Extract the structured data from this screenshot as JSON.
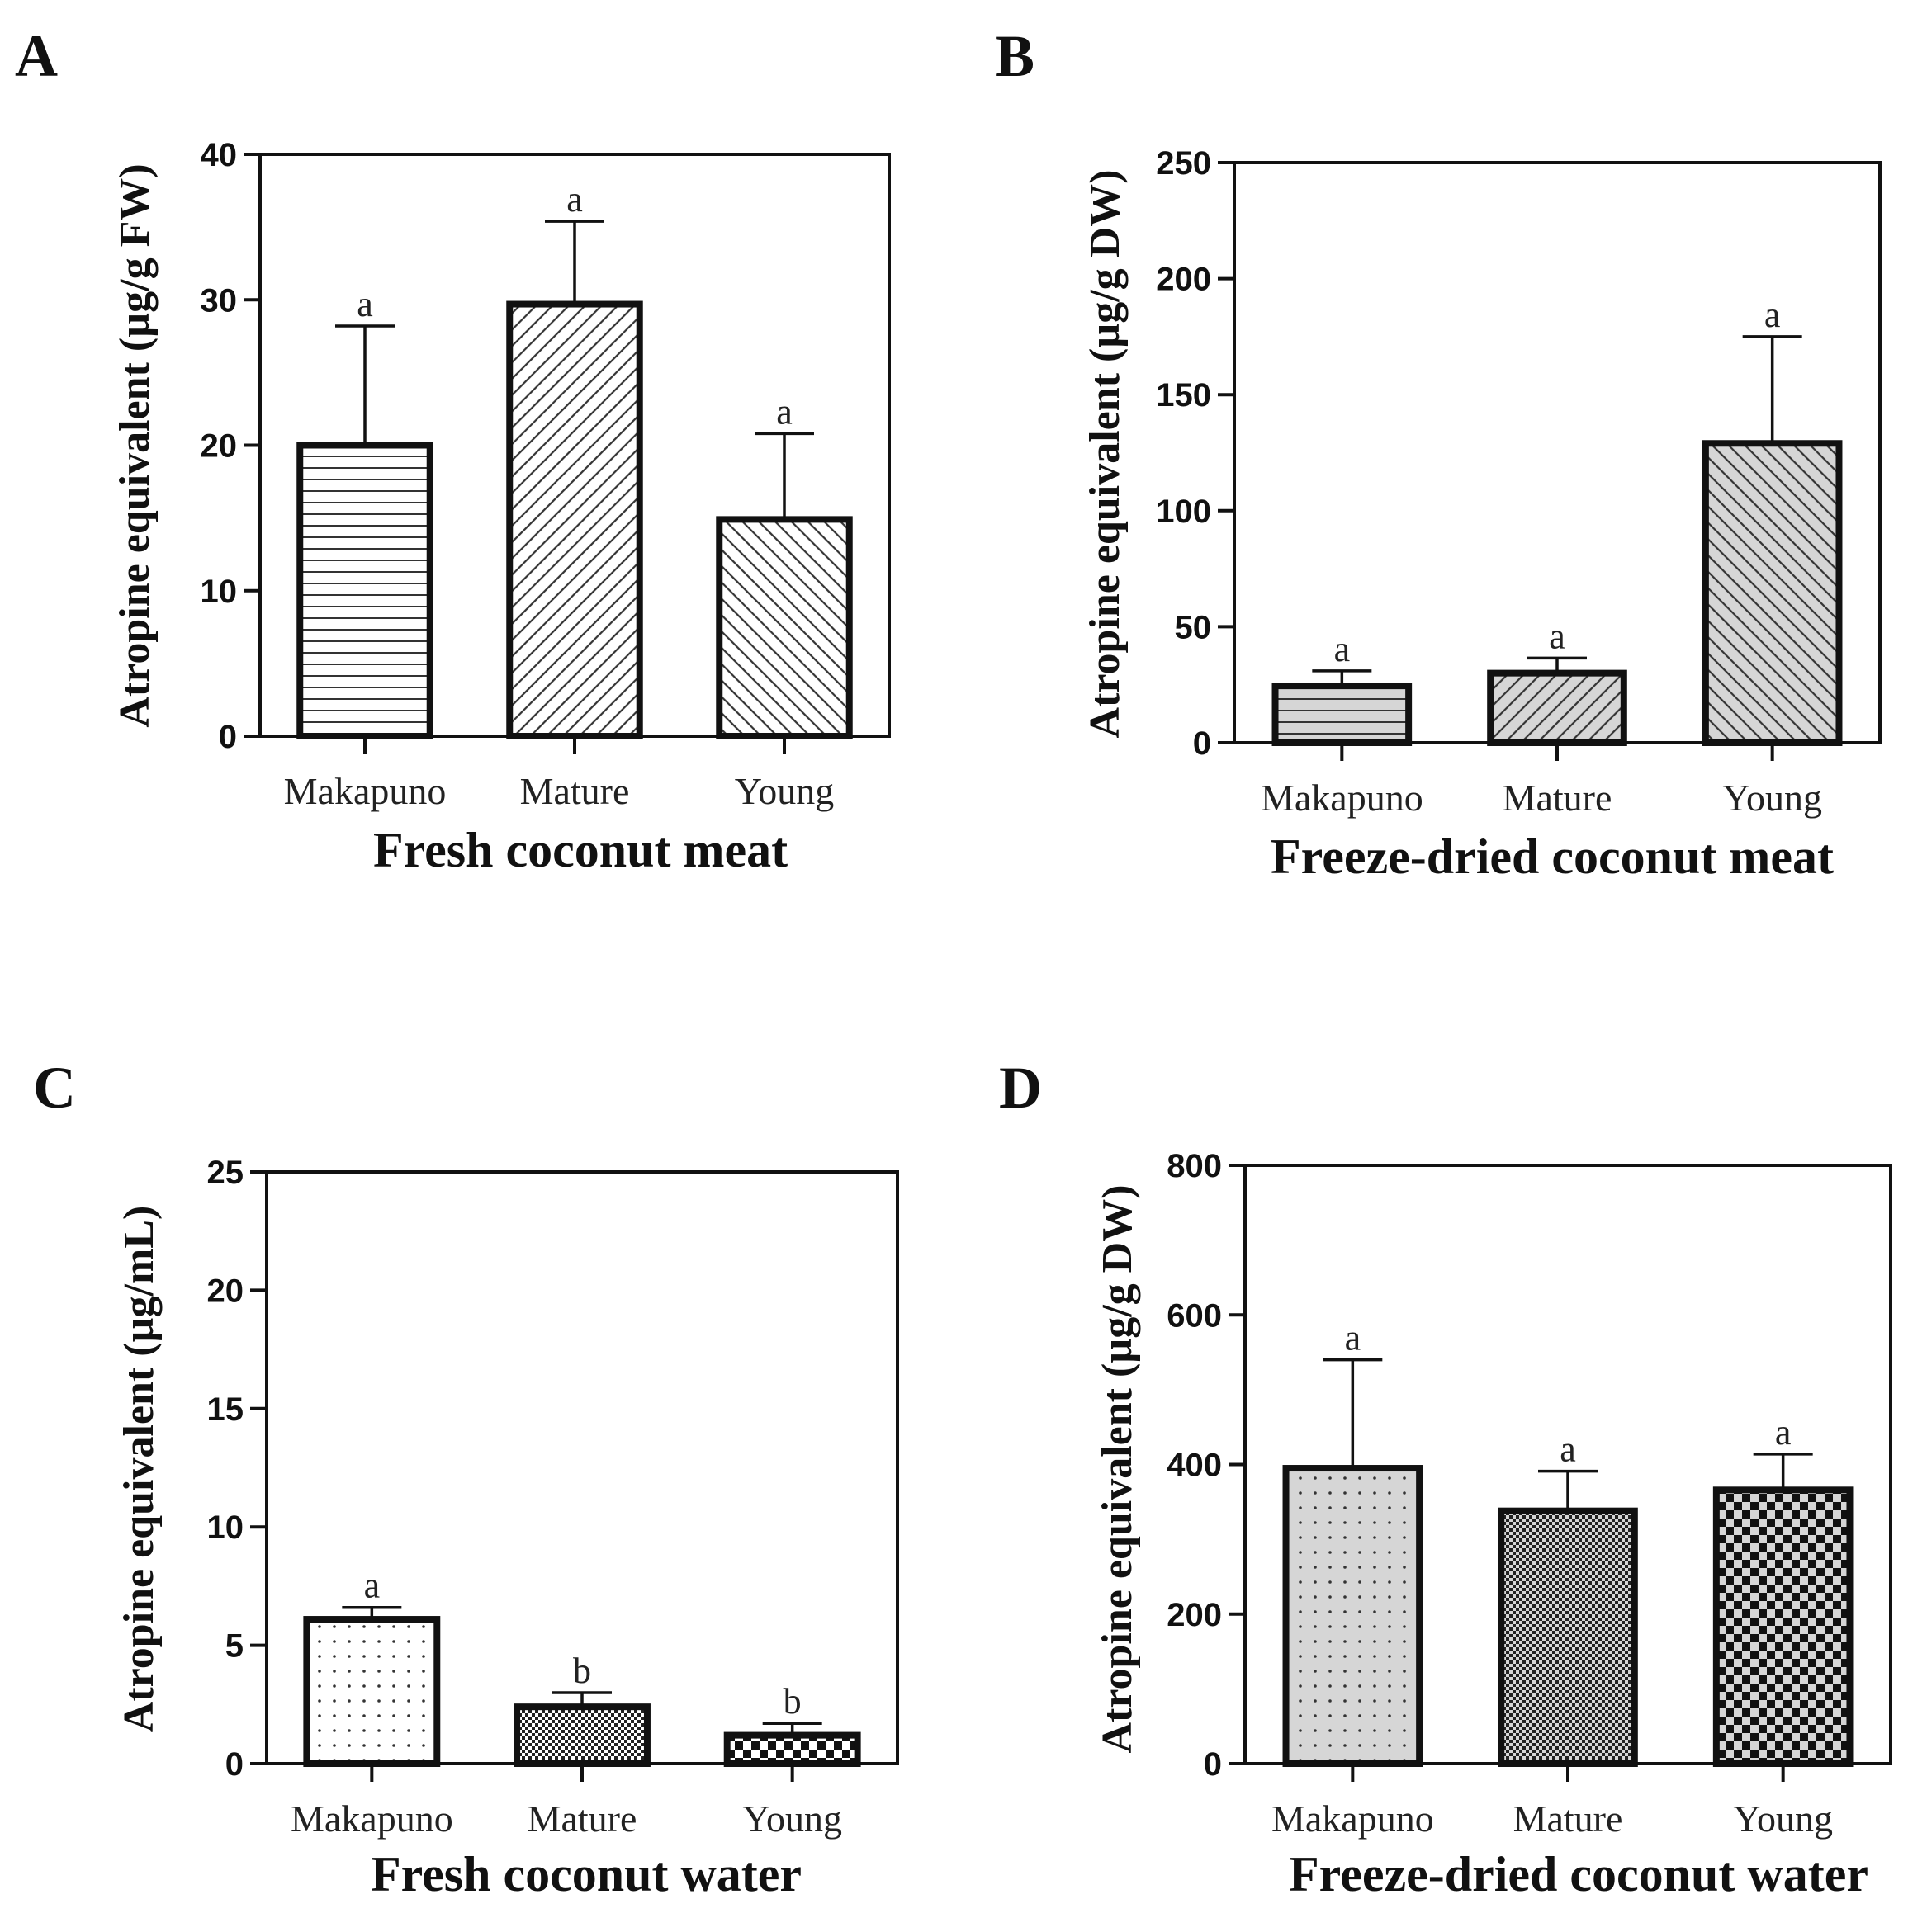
{
  "chart_data": [
    {
      "panel": "A",
      "type": "bar",
      "title": "",
      "xlabel": "Fresh coconut meat",
      "ylabel": "Atropine equivalent (µg/g FW)",
      "categories": [
        "Makapuno",
        "Mature",
        "Young"
      ],
      "values": [
        20,
        29.7,
        14.9
      ],
      "errors": [
        8.2,
        5.7,
        5.9
      ],
      "significance": [
        "a",
        "a",
        "a"
      ],
      "ylim": [
        0,
        40
      ],
      "yticks": [
        0,
        10,
        20,
        30,
        40
      ],
      "ytick_labels": [
        "0",
        "10",
        "20",
        "30",
        "40"
      ],
      "patterns": [
        "hlines",
        "diag-up",
        "diag-down"
      ],
      "fills": [
        "#ffffff",
        "#ffffff",
        "#ffffff"
      ]
    },
    {
      "panel": "B",
      "type": "bar",
      "title": "",
      "xlabel": "Freeze-dried coconut meat",
      "ylabel": "Atropine equivalent (µg/g DW)",
      "categories": [
        "Makapuno",
        "Mature",
        "Young"
      ],
      "values": [
        24.5,
        30,
        129
      ],
      "errors": [
        6.5,
        6.5,
        46
      ],
      "significance": [
        "a",
        "a",
        "a"
      ],
      "ylim": [
        0,
        250
      ],
      "yticks": [
        0,
        50,
        100,
        150,
        200,
        250
      ],
      "ytick_labels": [
        "0",
        "50",
        "100",
        "150",
        "200",
        "250"
      ],
      "patterns": [
        "hlines",
        "diag-up",
        "diag-down"
      ],
      "fills": [
        "#d6d6d6",
        "#d6d6d6",
        "#d6d6d6"
      ]
    },
    {
      "panel": "C",
      "type": "bar",
      "title": "",
      "xlabel": "Fresh coconut water",
      "ylabel": "Atropine equivalent (µg/mL)",
      "categories": [
        "Makapuno",
        "Mature",
        "Young"
      ],
      "values": [
        6.1,
        2.4,
        1.2
      ],
      "errors": [
        0.5,
        0.6,
        0.5
      ],
      "significance": [
        "a",
        "b",
        "b"
      ],
      "ylim": [
        0,
        25
      ],
      "yticks": [
        0,
        5,
        10,
        15,
        20,
        25
      ],
      "ytick_labels": [
        "0",
        "5",
        "10",
        "15",
        "20",
        "25"
      ],
      "patterns": [
        "dots",
        "fine-check",
        "big-check"
      ],
      "fills": [
        "#ffffff",
        "#ffffff",
        "#ffffff"
      ]
    },
    {
      "panel": "D",
      "type": "bar",
      "title": "",
      "xlabel": "Freeze-dried coconut water",
      "ylabel": "Atropine equivalent (µg/g DW)",
      "categories": [
        "Makapuno",
        "Mature",
        "Young"
      ],
      "values": [
        395,
        338,
        366
      ],
      "errors": [
        145,
        53,
        48
      ],
      "significance": [
        "a",
        "a",
        "a"
      ],
      "ylim": [
        0,
        800
      ],
      "yticks": [
        0,
        200,
        400,
        600,
        800
      ],
      "ytick_labels": [
        "0",
        "200",
        "400",
        "600",
        "800"
      ],
      "patterns": [
        "dots",
        "fine-check",
        "big-check"
      ],
      "fills": [
        "#d6d6d6",
        "#d6d6d6",
        "#d6d6d6"
      ]
    }
  ]
}
